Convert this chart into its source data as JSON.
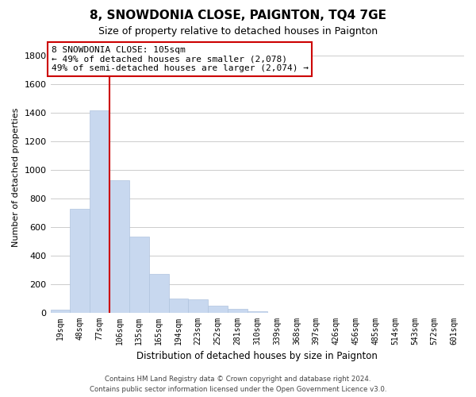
{
  "title": "8, SNOWDONIA CLOSE, PAIGNTON, TQ4 7GE",
  "subtitle": "Size of property relative to detached houses in Paignton",
  "xlabel": "Distribution of detached houses by size in Paignton",
  "ylabel": "Number of detached properties",
  "bar_labels": [
    "19sqm",
    "48sqm",
    "77sqm",
    "106sqm",
    "135sqm",
    "165sqm",
    "194sqm",
    "223sqm",
    "252sqm",
    "281sqm",
    "310sqm",
    "339sqm",
    "368sqm",
    "397sqm",
    "426sqm",
    "456sqm",
    "485sqm",
    "514sqm",
    "543sqm",
    "572sqm",
    "601sqm"
  ],
  "bar_values": [
    20,
    730,
    1420,
    930,
    530,
    270,
    100,
    90,
    50,
    25,
    10,
    0,
    0,
    0,
    0,
    0,
    0,
    0,
    0,
    0,
    0
  ],
  "bar_color": "#c8d8ef",
  "bar_edge_color": "#b0c4de",
  "vline_color": "#cc0000",
  "ylim": [
    0,
    1900
  ],
  "yticks": [
    0,
    200,
    400,
    600,
    800,
    1000,
    1200,
    1400,
    1600,
    1800
  ],
  "annotation_line1": "8 SNOWDONIA CLOSE: 105sqm",
  "annotation_line2": "← 49% of detached houses are smaller (2,078)",
  "annotation_line3": "49% of semi-detached houses are larger (2,074) →",
  "annotation_box_color": "#ffffff",
  "annotation_box_edge": "#cc0000",
  "footer_line1": "Contains HM Land Registry data © Crown copyright and database right 2024.",
  "footer_line2": "Contains public sector information licensed under the Open Government Licence v3.0.",
  "bg_color": "#ffffff",
  "grid_color": "#cccccc"
}
